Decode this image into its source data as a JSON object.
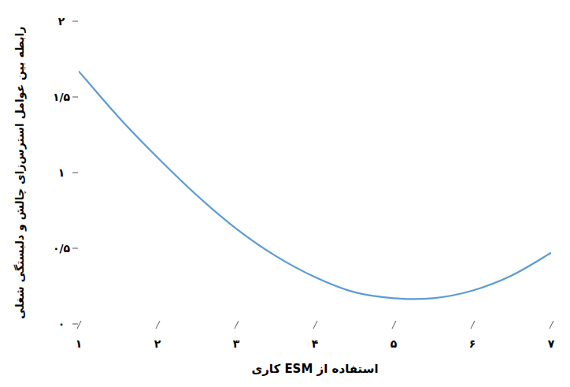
{
  "chart_data": {
    "type": "line",
    "x_label": "استفاده از ESM کاری",
    "y_label": "رابطه بین عوامل استرس‌زای چالش و دلبستگی شغلی",
    "x": [
      1,
      1.5,
      2,
      2.5,
      3,
      3.5,
      4,
      4.5,
      5,
      5.5,
      6,
      6.5,
      7
    ],
    "values": [
      1.67,
      1.37,
      1.1,
      0.85,
      0.63,
      0.45,
      0.31,
      0.21,
      0.17,
      0.17,
      0.22,
      0.32,
      0.47
    ],
    "color": "#5b9bd5",
    "xlim": [
      1,
      7
    ],
    "xticks": [
      {
        "value": 1,
        "label": "۱"
      },
      {
        "value": 2,
        "label": "۲"
      },
      {
        "value": 3,
        "label": "۳"
      },
      {
        "value": 4,
        "label": "۴"
      },
      {
        "value": 5,
        "label": "۵"
      },
      {
        "value": 6,
        "label": "۶"
      },
      {
        "value": 7,
        "label": "۷"
      }
    ],
    "ylim": [
      0,
      2
    ],
    "yticks": [
      {
        "value": 0,
        "label": "۰"
      },
      {
        "value": 0.5,
        "label": "۰/۵"
      },
      {
        "value": 1,
        "label": "۱"
      },
      {
        "value": 1.5,
        "label": "۱/۵"
      },
      {
        "value": 2,
        "label": "۲"
      }
    ],
    "grid": false
  }
}
